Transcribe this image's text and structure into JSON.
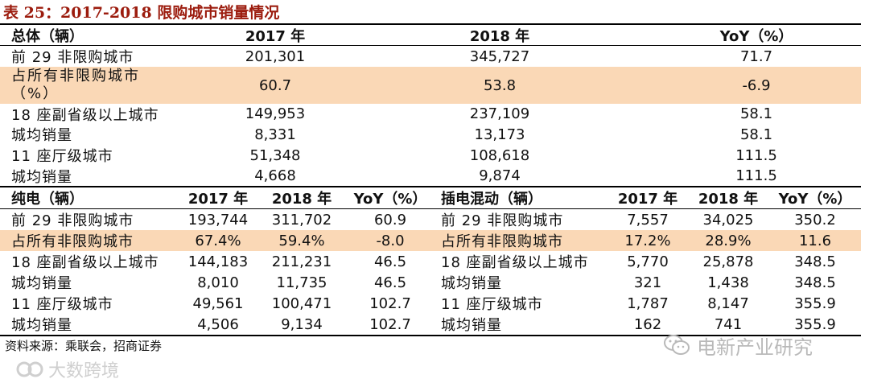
{
  "title": "表 25：2017-2018 限购城市销量情况",
  "total": {
    "header": {
      "label": "总体（辆）",
      "y2017": "2017 年",
      "y2018": "2018 年",
      "yoy": "YoY（%）"
    },
    "rows": [
      {
        "label": "前 29 非限购城市",
        "v2017": "201,301",
        "v2018": "345,727",
        "yoy": "71.7"
      },
      {
        "label": "占所有非限购城市（%）",
        "v2017": "60.7",
        "v2018": "53.8",
        "yoy": "-6.9"
      },
      {
        "label": "18 座副省级以上城市",
        "v2017": "149,953",
        "v2018": "237,109",
        "yoy": "58.1"
      },
      {
        "label": "城均销量",
        "v2017": "8,331",
        "v2018": "13,173",
        "yoy": "58.1"
      },
      {
        "label": "11 座厅级城市",
        "v2017": "51,348",
        "v2018": "108,618",
        "yoy": "111.5"
      },
      {
        "label": "城均销量",
        "v2017": "4,668",
        "v2018": "9,874",
        "yoy": "111.5"
      }
    ]
  },
  "ev": {
    "header": {
      "label": "纯电（辆）",
      "y2017": "2017 年",
      "y2018": "2018 年",
      "yoy": "YoY（%）"
    },
    "rows": [
      {
        "label": "前 29 非限购城市",
        "v2017": "193,744",
        "v2018": "311,702",
        "yoy": "60.9"
      },
      {
        "label": "占所有非限购城市",
        "v2017": "67.4%",
        "v2018": "59.4%",
        "yoy": "-8.0"
      },
      {
        "label": "18 座副省级以上城市",
        "v2017": "144,183",
        "v2018": "211,231",
        "yoy": "46.5"
      },
      {
        "label": "城均销量",
        "v2017": "8,010",
        "v2018": "11,735",
        "yoy": "46.5"
      },
      {
        "label": "11 座厅级城市",
        "v2017": "49,561",
        "v2018": "100,471",
        "yoy": "102.7"
      },
      {
        "label": "城均销量",
        "v2017": "4,506",
        "v2018": "9,134",
        "yoy": "102.7"
      }
    ]
  },
  "phev": {
    "header": {
      "label": "插电混动（辆）",
      "y2017": "2017 年",
      "y2018": "2018 年",
      "yoy": "YoY（%）"
    },
    "rows": [
      {
        "label": "前 29 非限购城市",
        "v2017": "7,557",
        "v2018": "34,025",
        "yoy": "350.2"
      },
      {
        "label": "占所有非限购城市",
        "v2017": "17.2%",
        "v2018": "28.9%",
        "yoy": "11.6"
      },
      {
        "label": "18 座副省级以上城市",
        "v2017": "5,770",
        "v2018": "25,878",
        "yoy": "348.5"
      },
      {
        "label": "城均销量",
        "v2017": "321",
        "v2018": "1,438",
        "yoy": "348.5"
      },
      {
        "label": "11 座厅级城市",
        "v2017": "1,787",
        "v2018": "8,147",
        "yoy": "355.9"
      },
      {
        "label": "城均销量",
        "v2017": "162",
        "v2018": "741",
        "yoy": "355.9"
      }
    ]
  },
  "source": "资料来源：乘联会，招商证券",
  "watermark_right": "电新产业研究",
  "watermark_left": "大数跨境",
  "colors": {
    "title": "#9c1c0e",
    "highlight": "#fad8b6"
  }
}
